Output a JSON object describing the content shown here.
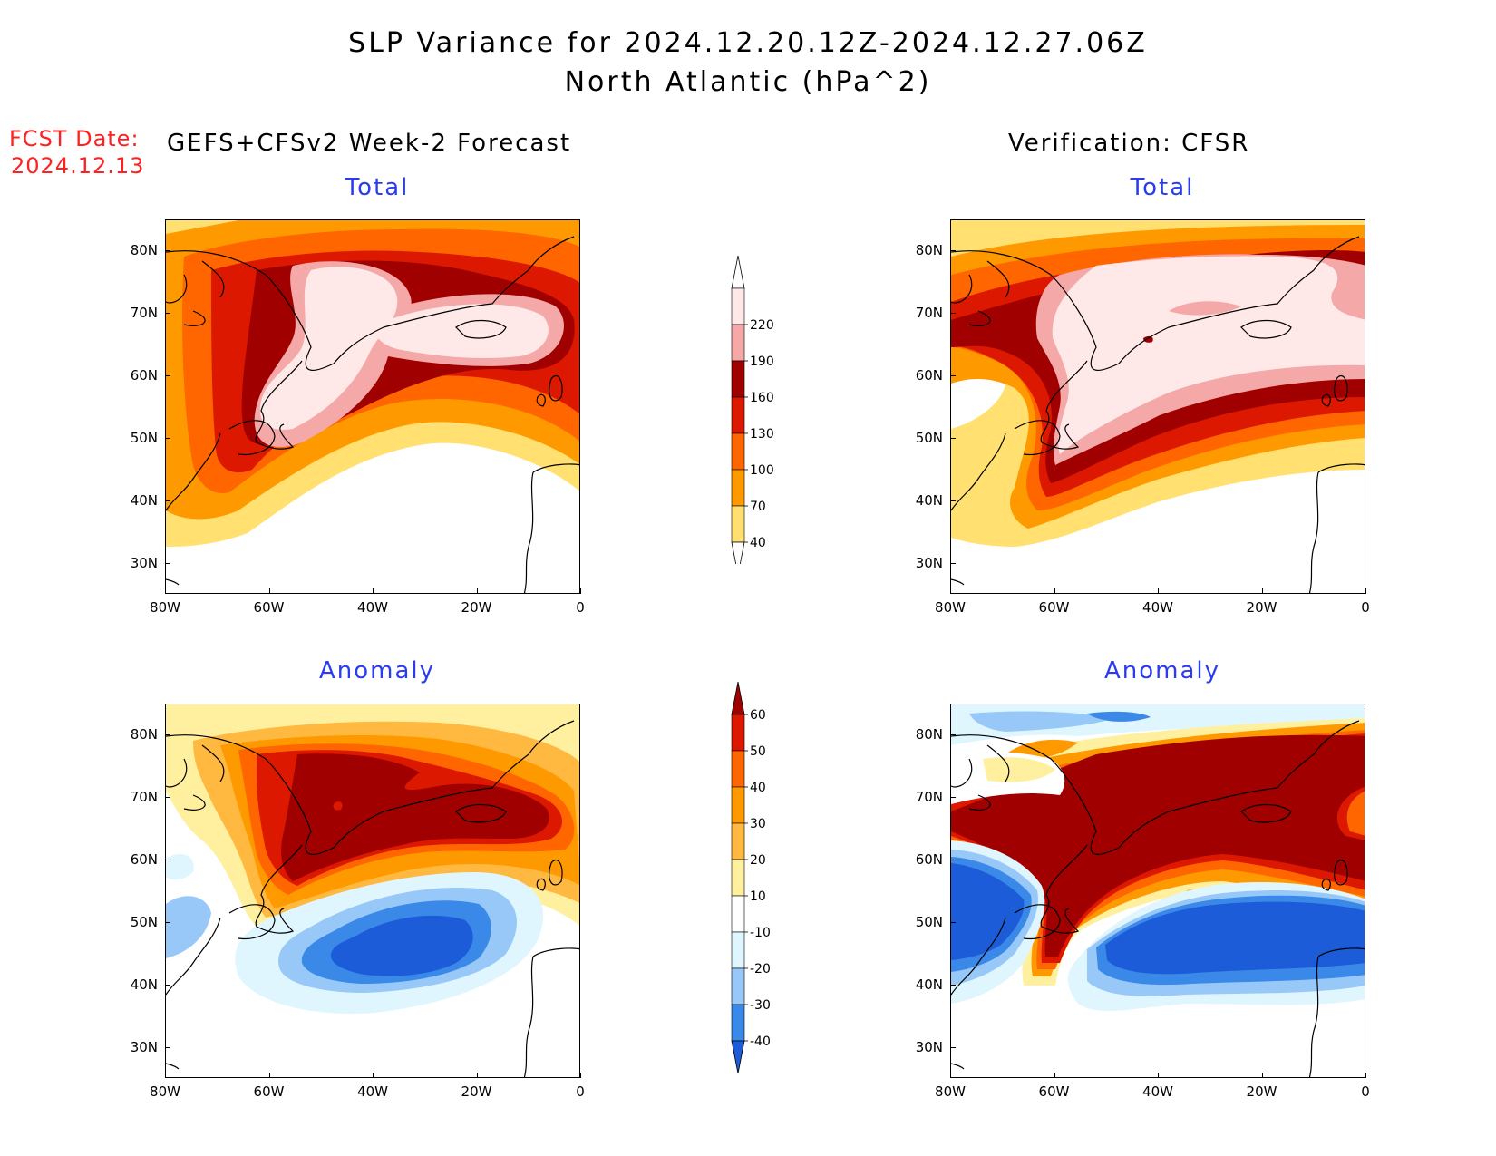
{
  "title_line1": "SLP Variance for 2024.12.20.12Z-2024.12.27.06Z",
  "title_line2": "North Atlantic (hPa^2)",
  "fcst_label": "FCST Date:",
  "fcst_date": "2024.12.13",
  "left_column_title": "GEFS+CFSv2 Week-2 Forecast",
  "right_column_title": "Verification: CFSR",
  "panels": [
    {
      "id": "forecast-total",
      "title": "Total"
    },
    {
      "id": "verification-total",
      "title": "Total"
    },
    {
      "id": "forecast-anomaly",
      "title": "Anomaly"
    },
    {
      "id": "verification-anomaly",
      "title": "Anomaly"
    }
  ],
  "axes": {
    "x_ticks": [
      "80W",
      "60W",
      "40W",
      "20W",
      "0"
    ],
    "y_ticks": [
      "80N",
      "70N",
      "60N",
      "50N",
      "40N",
      "30N"
    ],
    "lon_range": [
      -80,
      0
    ],
    "lat_range": [
      25,
      85
    ]
  },
  "total_colorbar": {
    "levels": [
      "220",
      "190",
      "160",
      "130",
      "100",
      "70",
      "40"
    ],
    "colors": [
      "#ffe8e8",
      "#f4a8a8",
      "#a00000",
      "#dd1800",
      "#ff6600",
      "#ff9900",
      "#ffe070"
    ]
  },
  "anomaly_colorbar": {
    "levels": [
      "60",
      "50",
      "40",
      "30",
      "20",
      "10",
      "-10",
      "-20",
      "-30",
      "-40"
    ],
    "colors": [
      "#a00000",
      "#dd1800",
      "#ff6600",
      "#ff9900",
      "#ffb840",
      "#fff0a0",
      "#ffffff",
      "#dff6ff",
      "#98c8f8",
      "#3a88e8",
      "#1c5cd8"
    ]
  }
}
